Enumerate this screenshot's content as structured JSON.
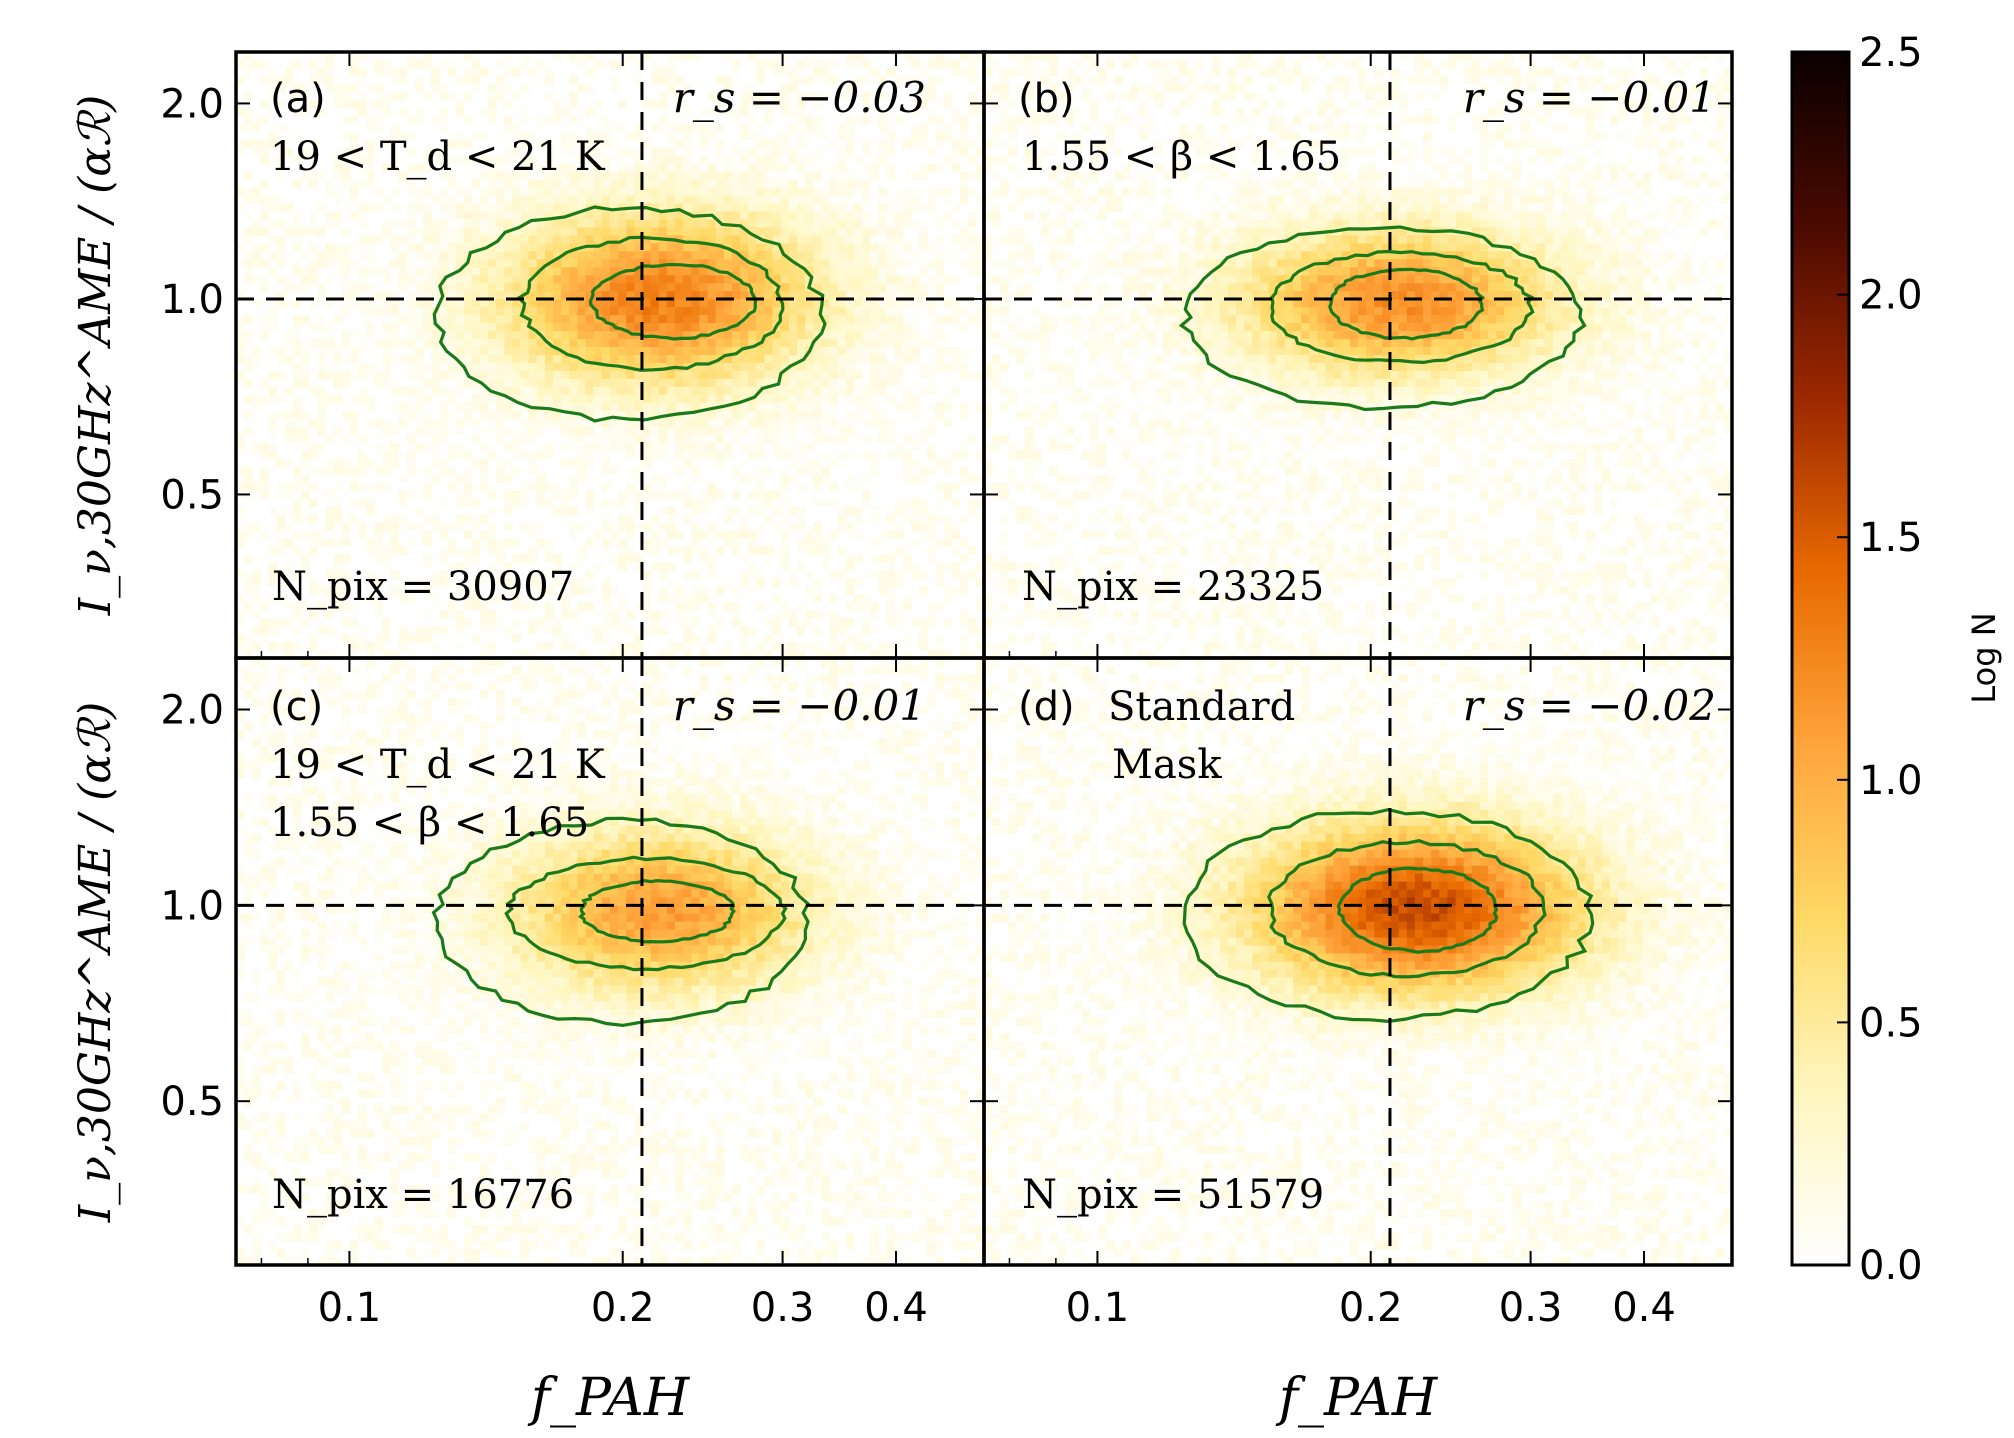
{
  "chart_data": [
    {
      "type": "heatmap",
      "panel_label": "(a)",
      "cut_lines": [
        "19 < T_d < 21 K"
      ],
      "spearman": "r_s = −0.03",
      "npix": "N_pix = 30907",
      "ref_x": 0.21,
      "ref_y": 1.0,
      "contour_center": [
        0.22,
        1.0
      ],
      "contour_extent_x": [
        [
          0.185,
          0.28
        ],
        [
          0.155,
          0.3
        ],
        [
          0.125,
          0.33
        ]
      ],
      "contour_extent_y": [
        [
          0.87,
          1.13
        ],
        [
          0.78,
          1.24
        ],
        [
          0.65,
          1.38
        ]
      ],
      "peak_logN": 1.3
    },
    {
      "type": "heatmap",
      "panel_label": "(b)",
      "cut_lines": [
        "1.55 < β < 1.65"
      ],
      "spearman": "r_s = −0.01",
      "npix": "N_pix = 23325",
      "ref_x": 0.21,
      "ref_y": 1.0,
      "contour_center": [
        0.215,
        0.99
      ],
      "contour_extent_x": [
        [
          0.18,
          0.265
        ],
        [
          0.155,
          0.3
        ],
        [
          0.125,
          0.34
        ]
      ],
      "contour_extent_y": [
        [
          0.87,
          1.11
        ],
        [
          0.8,
          1.18
        ],
        [
          0.68,
          1.29
        ]
      ],
      "peak_logN": 1.2
    },
    {
      "type": "heatmap",
      "panel_label": "(c)",
      "cut_lines": [
        "19 < T_d < 21 K",
        "1.55 < β < 1.65"
      ],
      "spearman": "r_s = −0.01",
      "npix": "N_pix = 16776",
      "ref_x": 0.21,
      "ref_y": 1.0,
      "contour_center": [
        0.22,
        0.98
      ],
      "contour_extent_x": [
        [
          0.18,
          0.265
        ],
        [
          0.15,
          0.3
        ],
        [
          0.125,
          0.32
        ]
      ],
      "contour_extent_y": [
        [
          0.88,
          1.09
        ],
        [
          0.8,
          1.18
        ],
        [
          0.66,
          1.35
        ]
      ],
      "peak_logN": 1.1
    },
    {
      "type": "heatmap",
      "panel_label": "(d)",
      "cut_lines": [
        "Standard",
        "Mask"
      ],
      "spearman": "r_s = −0.02",
      "npix": "N_pix = 51579",
      "ref_x": 0.21,
      "ref_y": 1.0,
      "contour_center": [
        0.225,
        0.99
      ],
      "contour_extent_x": [
        [
          0.185,
          0.275
        ],
        [
          0.155,
          0.31
        ],
        [
          0.125,
          0.35
        ]
      ],
      "contour_extent_y": [
        [
          0.85,
          1.14
        ],
        [
          0.78,
          1.25
        ],
        [
          0.67,
          1.4
        ]
      ],
      "peak_logN": 1.6
    }
  ],
  "axes": {
    "xlabel": "f_PAH",
    "ylabel": "I_ν,30GHz^AME / (αℛ)",
    "xscale": "log",
    "yscale": "log",
    "xlim": [
      0.075,
      0.5
    ],
    "ylim": [
      0.28,
      2.4
    ],
    "xticks": [
      0.1,
      0.2,
      0.3,
      0.4
    ],
    "xtick_labels": [
      "0.1",
      "0.2",
      "0.3",
      "0.4"
    ],
    "yticks": [
      0.5,
      1.0,
      2.0
    ],
    "ytick_labels": [
      "0.5",
      "1.0",
      "2.0"
    ]
  },
  "colorbar": {
    "label": "Log N",
    "range": [
      0.0,
      2.5
    ],
    "ticks": [
      "0.0",
      "0.5",
      "1.0",
      "1.5",
      "2.0",
      "2.5"
    ],
    "colormap": "afmhot_r",
    "colors": [
      "#ffffff",
      "#fff6bf",
      "#ffd966",
      "#ffa43b",
      "#e86a00",
      "#9c2800",
      "#4a0a00",
      "#0a0000"
    ]
  },
  "contour_color": "#1a7a1a",
  "refline_color": "#000000"
}
